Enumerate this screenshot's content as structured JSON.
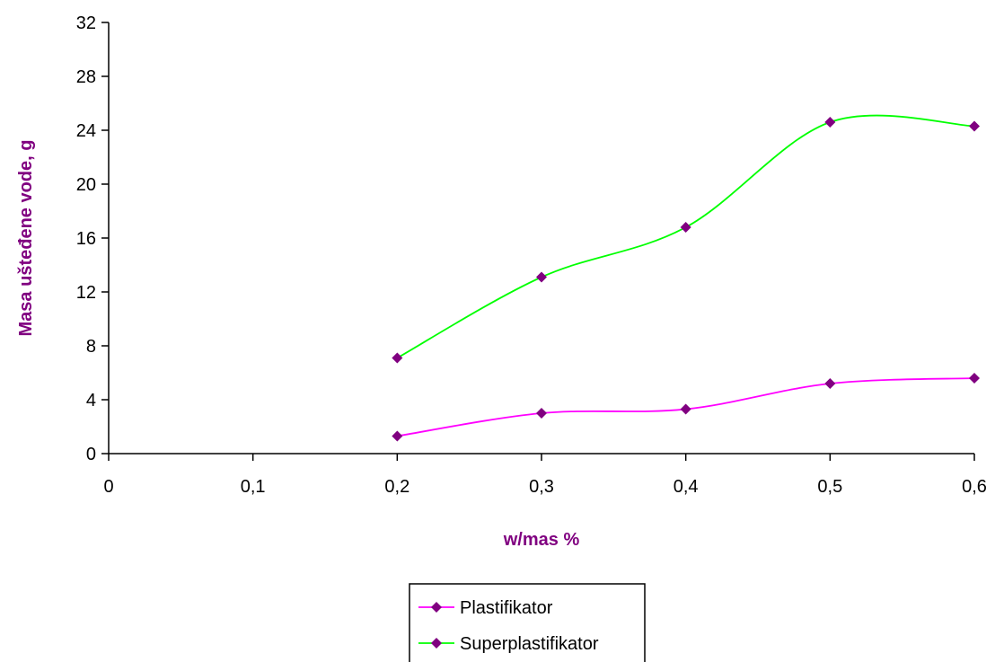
{
  "chart_data": {
    "type": "line",
    "title": "",
    "xlabel": "w/mas %",
    "ylabel": "Masa uštеđene vode, g",
    "xlim": [
      0,
      0.6
    ],
    "ylim": [
      0,
      32
    ],
    "x_ticks": [
      "0",
      "0,1",
      "0,2",
      "0,3",
      "0,4",
      "0,5",
      "0,6"
    ],
    "y_ticks": [
      "0",
      "4",
      "8",
      "12",
      "16",
      "20",
      "24",
      "28",
      "32"
    ],
    "grid": false,
    "smooth": true,
    "legend_position": "bottom",
    "series": [
      {
        "name": "Plastifikator",
        "color": "#ff00ff",
        "marker_color": "#800080",
        "x": [
          0.2,
          0.3,
          0.4,
          0.5,
          0.6
        ],
        "y": [
          1.3,
          3.0,
          3.3,
          5.2,
          5.6
        ]
      },
      {
        "name": "Superplastifikator",
        "color": "#00ff00",
        "marker_color": "#800080",
        "x": [
          0.2,
          0.3,
          0.4,
          0.5,
          0.6
        ],
        "y": [
          7.1,
          13.1,
          16.8,
          24.6,
          24.3
        ]
      }
    ],
    "axis_title_color": "#800080"
  }
}
